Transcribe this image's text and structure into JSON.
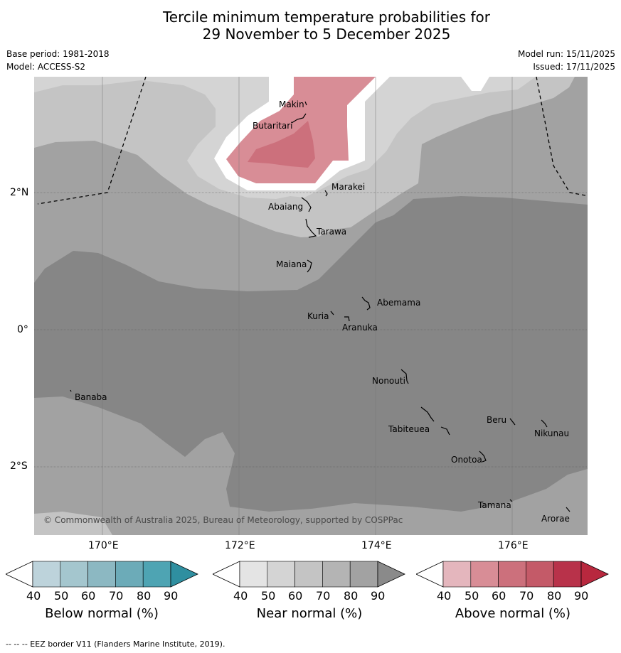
{
  "title": {
    "line1": "Tercile minimum temperature probabilities for",
    "line2": "29 November to 5 December 2025"
  },
  "meta": {
    "base_period": "Base period: 1981-2018",
    "model": "Model: ACCESS-S2",
    "model_run": "Model run: 15/11/2025",
    "issued": "Issued: 17/11/2025"
  },
  "map": {
    "lat_labels": [
      "2°N",
      "0°",
      "2°S"
    ],
    "lon_labels": [
      "170°E",
      "172°E",
      "174°E",
      "176°E"
    ],
    "copyright": "© Commonwealth of Australia 2025, Bureau of Meteorology, supported by COSPPac",
    "places": {
      "makin": "Makin",
      "butaritari": "Butaritari",
      "marakei": "Marakei",
      "abaiang": "Abaiang",
      "tarawa": "Tarawa",
      "maiana": "Maiana",
      "abemama": "Abemama",
      "kuria": "Kuria",
      "aranuka": "Aranuka",
      "banaba": "Banaba",
      "nonouti": "Nonouti",
      "beru": "Beru",
      "nikunau": "Nikunau",
      "tabiteuea": "Tabiteuea",
      "onotoa": "Onotoa",
      "tamana": "Tamana",
      "arorae": "Arorae"
    }
  },
  "legend": {
    "below": {
      "label": "Below normal (%)",
      "ticks": [
        "40",
        "50",
        "60",
        "70",
        "80",
        "90"
      ],
      "colors": [
        "#bdd3db",
        "#a4c6ce",
        "#8cb8c2",
        "#6cabb8",
        "#4ea4b3",
        "#2f8fa0"
      ]
    },
    "near": {
      "label": "Near normal (%)",
      "ticks": [
        "40",
        "50",
        "60",
        "70",
        "80",
        "90"
      ],
      "colors": [
        "#e4e4e4",
        "#d4d4d4",
        "#c4c4c4",
        "#b4b4b4",
        "#a2a2a2",
        "#8a8a8a"
      ]
    },
    "above": {
      "label": "Above normal (%)",
      "ticks": [
        "40",
        "50",
        "60",
        "70",
        "80",
        "90"
      ],
      "colors": [
        "#e4b6bd",
        "#d88d96",
        "#cc707c",
        "#c45a68",
        "#b8324a",
        "#b8283e"
      ]
    }
  },
  "footer": "--  --  -- EEZ border V11 (Flanders Marine Institute, 2019)."
}
